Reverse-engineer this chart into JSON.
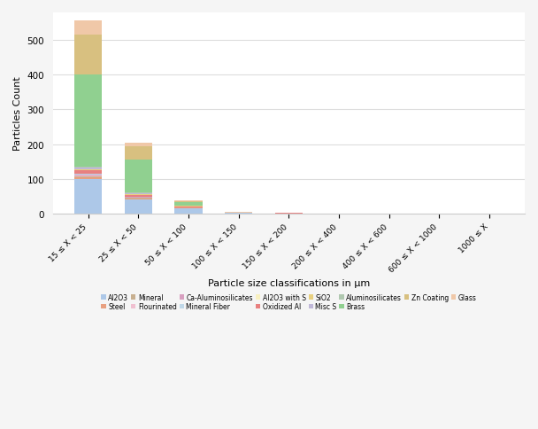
{
  "categories": [
    "15 ≤ X < 25",
    "25 ≤ X < 50",
    "50 ≤ X < 100",
    "100 ≤ X < 150",
    "150 ≤ X < 200",
    "200 ≤ X < 400",
    "400 ≤ X < 600",
    "600 ≤ X < 1000",
    "1000 ≤ X"
  ],
  "series": [
    {
      "name": "Al2O3",
      "color": "#adc8e8",
      "values": [
        100,
        40,
        15,
        1,
        0,
        0,
        0,
        0,
        0
      ]
    },
    {
      "name": "Steel",
      "color": "#e8a080",
      "values": [
        5,
        3,
        1,
        0,
        0,
        0,
        0,
        0,
        0
      ]
    },
    {
      "name": "Mineral",
      "color": "#c8b090",
      "values": [
        2,
        1,
        1,
        0,
        0,
        0,
        0,
        0,
        0
      ]
    },
    {
      "name": "Flourinated",
      "color": "#f0c0d0",
      "values": [
        3,
        2,
        1,
        0,
        0,
        0,
        0,
        0,
        0
      ]
    },
    {
      "name": "Ca-Aluminosilicates",
      "color": "#d8a0c0",
      "values": [
        2,
        1,
        0,
        0,
        0,
        0,
        0,
        0,
        0
      ]
    },
    {
      "name": "Mineral Fiber",
      "color": "#c0d8e8",
      "values": [
        2,
        1,
        0,
        0,
        0,
        0,
        0,
        0,
        0
      ]
    },
    {
      "name": "Al2O3 with S",
      "color": "#f8f0c0",
      "values": [
        1,
        1,
        0,
        0,
        0,
        0,
        0,
        0,
        0
      ]
    },
    {
      "name": "Oxidized Al",
      "color": "#e88080",
      "values": [
        10,
        4,
        2,
        2,
        2,
        0,
        0,
        0,
        0
      ]
    },
    {
      "name": "SiO2",
      "color": "#e8d080",
      "values": [
        3,
        2,
        1,
        0,
        0,
        0,
        0,
        0,
        0
      ]
    },
    {
      "name": "Misc S",
      "color": "#c0b8d8",
      "values": [
        5,
        3,
        1,
        0,
        0,
        0,
        0,
        0,
        0
      ]
    },
    {
      "name": "Aluminosilicates",
      "color": "#b0c8b0",
      "values": [
        3,
        2,
        1,
        0,
        0,
        0,
        0,
        0,
        0
      ]
    },
    {
      "name": "Brass",
      "color": "#90d090",
      "values": [
        265,
        95,
        10,
        0,
        0,
        0,
        0,
        0,
        0
      ]
    },
    {
      "name": "Zn Coating",
      "color": "#d8c080",
      "values": [
        115,
        38,
        3,
        0,
        0,
        0,
        0,
        0,
        0
      ]
    },
    {
      "name": "Glass",
      "color": "#f0c8a8",
      "values": [
        40,
        12,
        2,
        2,
        1,
        0,
        0,
        0,
        0
      ]
    }
  ],
  "ylabel": "Particles Count",
  "xlabel": "Particle size classifications in µm",
  "ylim": [
    0,
    580
  ],
  "yticks": [
    0,
    100,
    200,
    300,
    400,
    500
  ],
  "bg_color": "#f5f5f5",
  "plot_bg": "#ffffff",
  "grid_color": "#dddddd"
}
